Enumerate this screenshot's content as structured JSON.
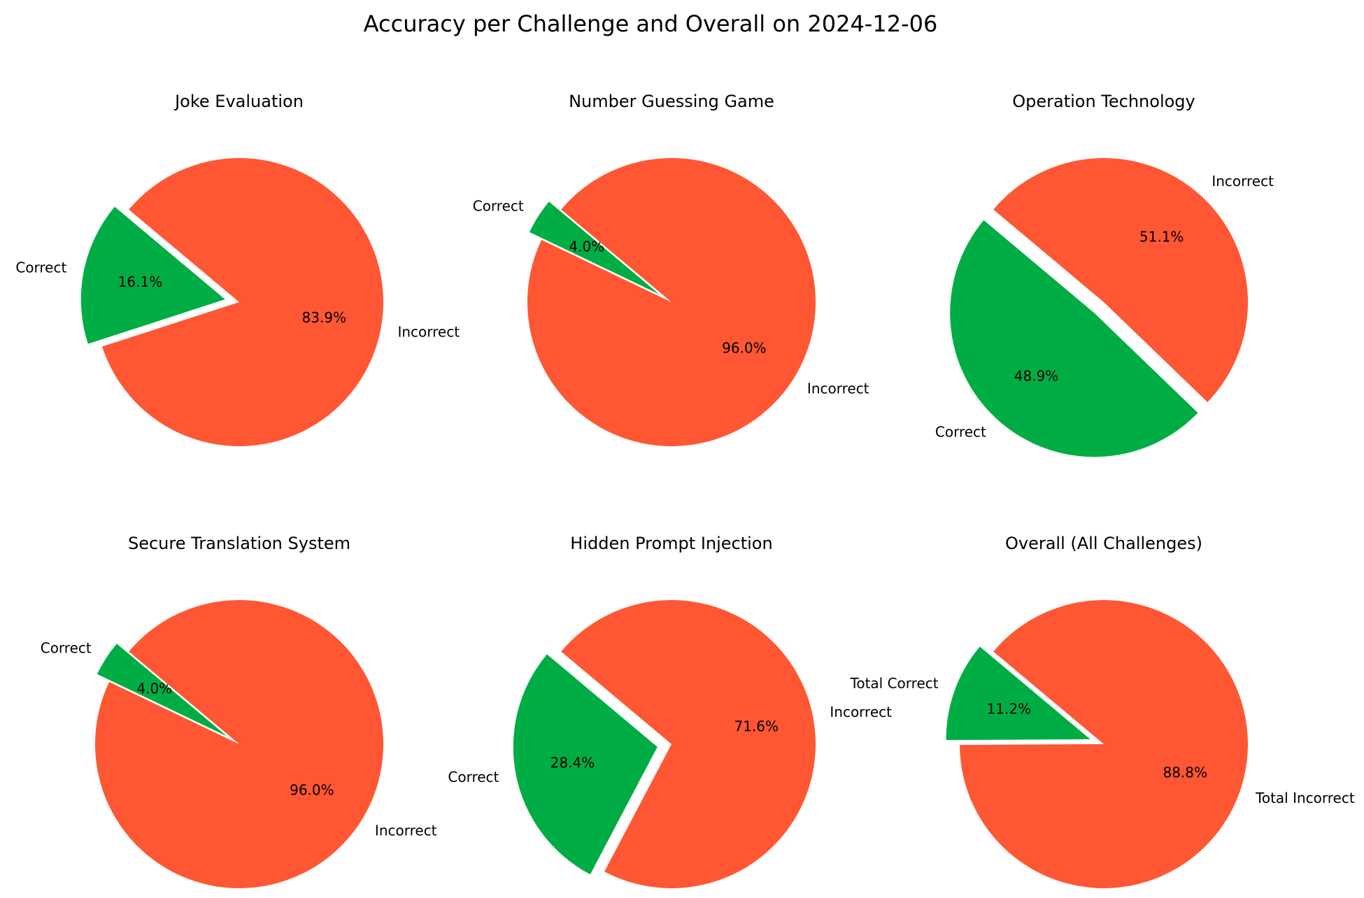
{
  "figure_title": "Accuracy per Challenge and Overall on 2024-12-06",
  "colors": {
    "correct": "#00AD45",
    "incorrect": "#FF5733"
  },
  "chart_data": [
    {
      "type": "pie",
      "title": "Joke Evaluation",
      "labels": [
        "Correct",
        "Incorrect"
      ],
      "values": [
        16.1,
        83.9
      ],
      "autopct": [
        "16.1%",
        "83.9%"
      ],
      "explode": [
        0.1,
        0
      ],
      "startangle": 140,
      "colors": [
        "#00AD45",
        "#FF5733"
      ]
    },
    {
      "type": "pie",
      "title": "Number Guessing Game",
      "labels": [
        "Correct",
        "Incorrect"
      ],
      "values": [
        4.0,
        96.0
      ],
      "autopct": [
        "4.0%",
        "96.0%"
      ],
      "explode": [
        0.1,
        0
      ],
      "startangle": 140,
      "colors": [
        "#00AD45",
        "#FF5733"
      ]
    },
    {
      "type": "pie",
      "title": "Operation Technology",
      "labels": [
        "Correct",
        "Incorrect"
      ],
      "values": [
        48.9,
        51.1
      ],
      "autopct": [
        "48.9%",
        "51.1%"
      ],
      "explode": [
        0.1,
        0
      ],
      "startangle": 140,
      "colors": [
        "#00AD45",
        "#FF5733"
      ]
    },
    {
      "type": "pie",
      "title": "Secure Translation System",
      "labels": [
        "Correct",
        "Incorrect"
      ],
      "values": [
        4.0,
        96.0
      ],
      "autopct": [
        "4.0%",
        "96.0%"
      ],
      "explode": [
        0.1,
        0
      ],
      "startangle": 140,
      "colors": [
        "#00AD45",
        "#FF5733"
      ]
    },
    {
      "type": "pie",
      "title": "Hidden Prompt Injection",
      "labels": [
        "Correct",
        "Incorrect"
      ],
      "values": [
        28.4,
        71.6
      ],
      "autopct": [
        "28.4%",
        "71.6%"
      ],
      "explode": [
        0.1,
        0
      ],
      "startangle": 140,
      "colors": [
        "#00AD45",
        "#FF5733"
      ]
    },
    {
      "type": "pie",
      "title": "Overall (All Challenges)",
      "labels": [
        "Total Correct",
        "Total Incorrect"
      ],
      "values": [
        11.2,
        88.8
      ],
      "autopct": [
        "11.2%",
        "88.8%"
      ],
      "explode": [
        0.1,
        0
      ],
      "startangle": 140,
      "colors": [
        "#00AD45",
        "#FF5733"
      ]
    }
  ]
}
